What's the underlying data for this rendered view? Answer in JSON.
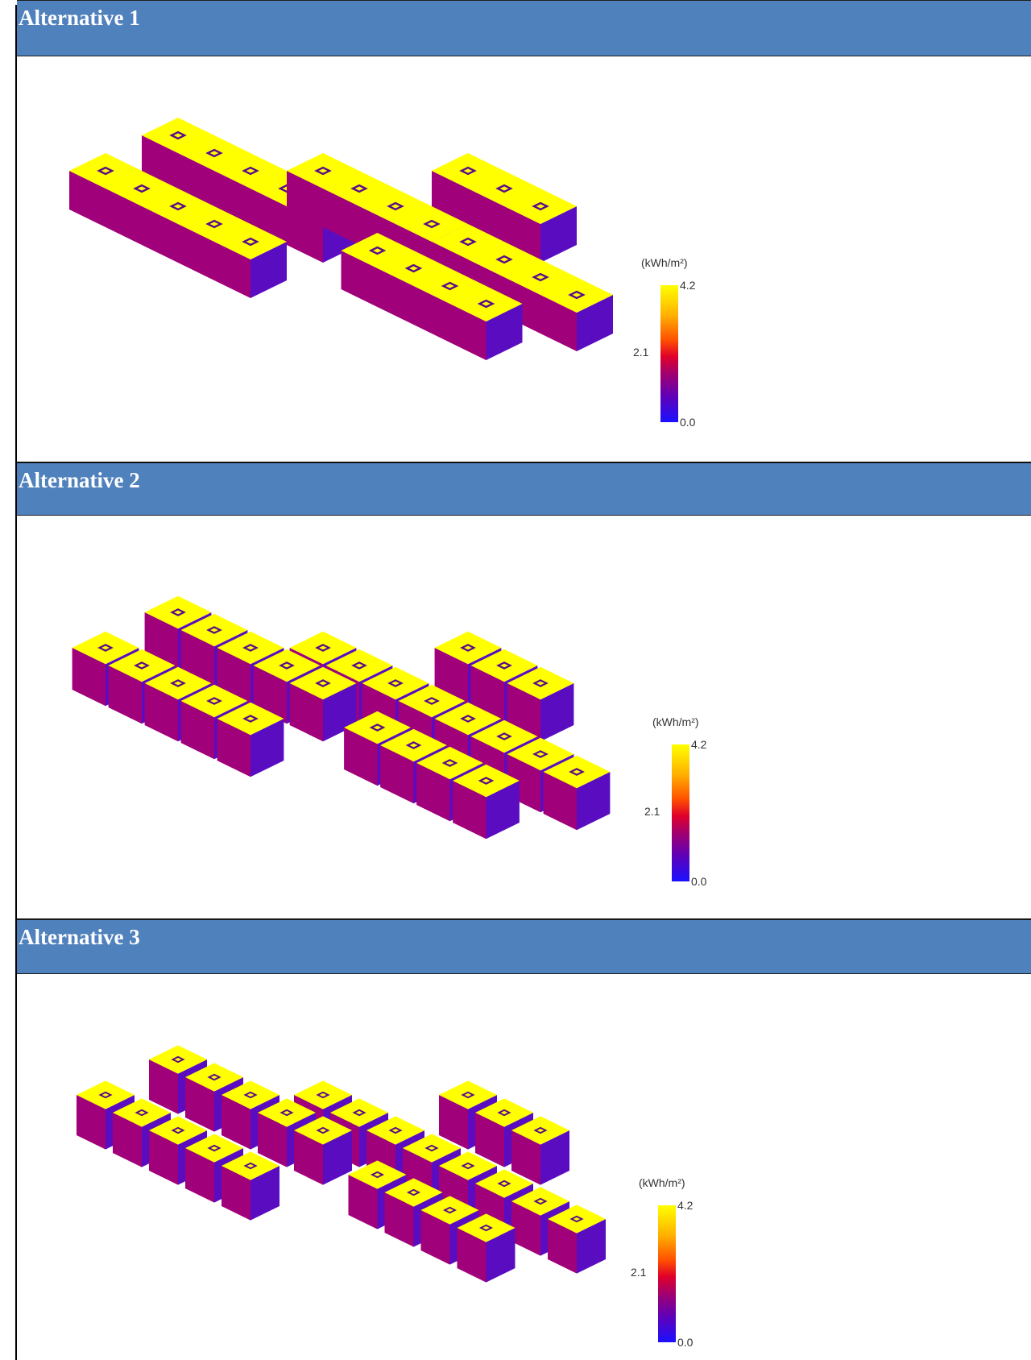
{
  "sections": [
    {
      "title": "Alternative 1",
      "legend": {
        "unit": "(kWh/m²)",
        "max": "4.2",
        "mid": "2.1",
        "min": "0.0"
      }
    },
    {
      "title": "Alternative 2",
      "legend": {
        "unit": "(kWh/m²)",
        "max": "4.2",
        "mid": "2.1",
        "min": "0.0"
      }
    },
    {
      "title": "Alternative 3",
      "legend": {
        "unit": "(kWh/m²)",
        "max": "4.2",
        "mid": "2.1",
        "min": "0.0"
      }
    }
  ],
  "colors": {
    "header_blue": "#4f81bd",
    "roof_yellow": "#ffff00",
    "wall_left_magenta": "#a0007a",
    "wall_right_purple": "#5a0dc0",
    "courtyard_dark": "#5a0a8a"
  }
}
